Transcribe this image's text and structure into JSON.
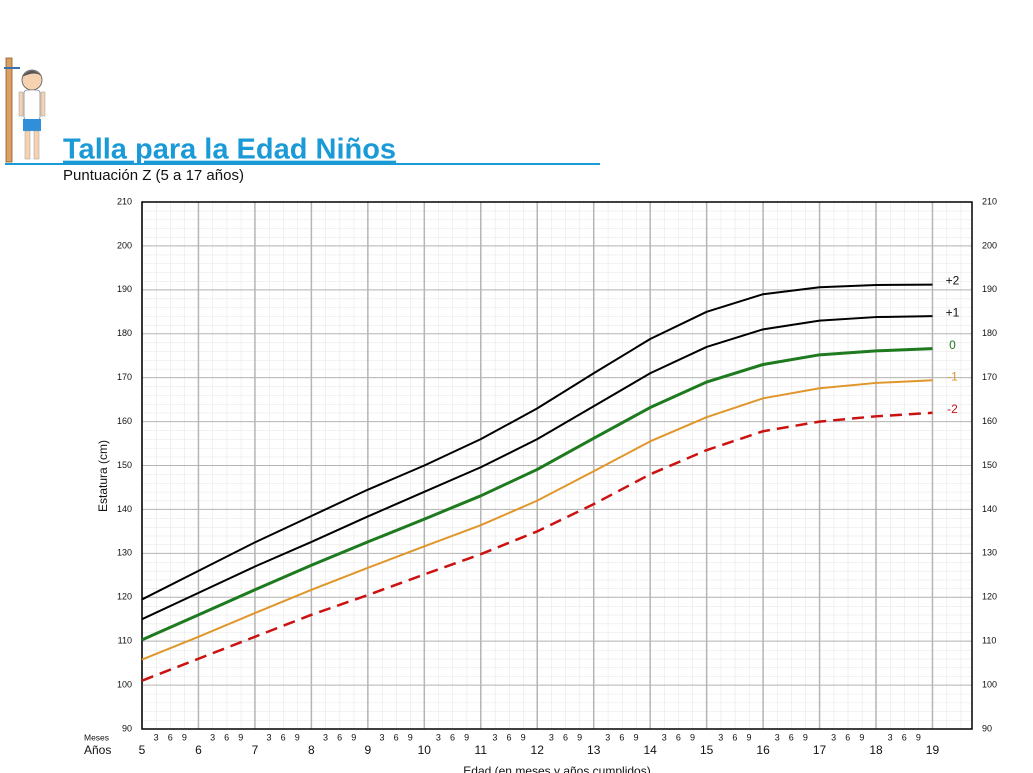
{
  "chart_data": {
    "type": "line",
    "title": "Talla para la Edad Niños",
    "subtitle": "Puntuación Z (5 a 17 años)",
    "y_label": "Estatura (cm)",
    "x_label": "Edad (en meses y años cumplidos)",
    "months_row_label": "Meses",
    "years_row_label": "Años",
    "month_ticks": [
      3,
      6,
      9
    ],
    "x": [
      5,
      6,
      7,
      8,
      9,
      10,
      11,
      12,
      13,
      14,
      15,
      16,
      17,
      18,
      19
    ],
    "xlim": [
      5,
      19.7
    ],
    "xticks": [
      5,
      6,
      7,
      8,
      9,
      10,
      11,
      12,
      13,
      14,
      15,
      16,
      17,
      18,
      19
    ],
    "ylim": [
      90,
      210
    ],
    "yticks": [
      90,
      100,
      110,
      120,
      130,
      140,
      150,
      160,
      170,
      180,
      190,
      200,
      210
    ],
    "grid": true,
    "series": [
      {
        "name": "+2",
        "color": "#000000",
        "dashed": false,
        "values": [
          119.5,
          126,
          132.5,
          138.5,
          144.5,
          150,
          156,
          163,
          171,
          178.8,
          185,
          189,
          190.6,
          191.1,
          191.2
        ]
      },
      {
        "name": "+1",
        "color": "#000000",
        "dashed": false,
        "values": [
          115,
          121,
          127,
          132.6,
          138.4,
          144,
          149.6,
          156,
          163.5,
          171,
          177,
          181,
          183,
          183.8,
          184
        ]
      },
      {
        "name": "0",
        "color": "#1e7a1e",
        "dashed": false,
        "values": [
          110.3,
          116,
          121.7,
          127.3,
          132.6,
          137.8,
          143.1,
          149.1,
          156.2,
          163.2,
          169,
          173,
          175.2,
          176.1,
          176.6
        ]
      },
      {
        "name": "-1",
        "color": "#e0962a",
        "dashed": false,
        "values": [
          105.8,
          111,
          116.4,
          121.7,
          126.7,
          131.6,
          136.4,
          142,
          148.7,
          155.5,
          161,
          165.3,
          167.6,
          168.8,
          169.4
        ]
      },
      {
        "name": "-2",
        "color": "#cc1111",
        "dashed": true,
        "values": [
          101,
          106,
          111,
          116,
          120.5,
          125.2,
          129.8,
          135,
          141.2,
          148,
          153.5,
          157.8,
          160,
          161.2,
          162
        ]
      }
    ]
  }
}
